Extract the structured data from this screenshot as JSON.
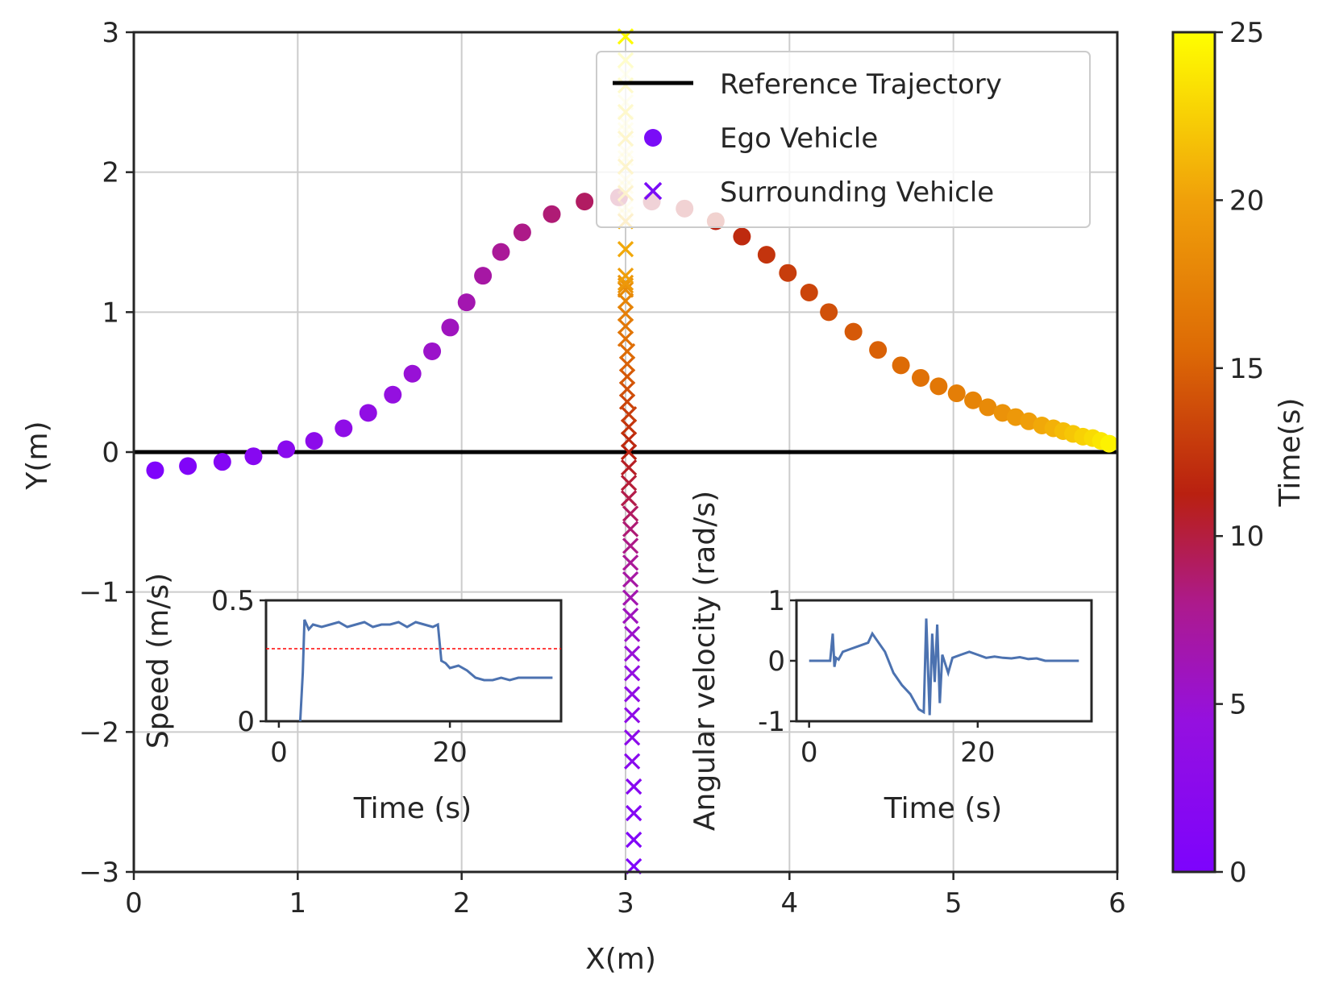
{
  "chart_data": [
    {
      "type": "scatter",
      "role": "main",
      "xlabel": "X(m)",
      "ylabel": "Y(m)",
      "xlim": [
        0,
        6
      ],
      "ylim": [
        -3,
        3
      ],
      "xticks": [
        0,
        1,
        2,
        3,
        4,
        5,
        6
      ],
      "xtick_labels": [
        "0",
        "1",
        "2",
        "3",
        "4",
        "5",
        "6"
      ],
      "yticks": [
        -3,
        -2,
        -1,
        0,
        1,
        2,
        3
      ],
      "ytick_labels": [
        "−3",
        "−2",
        "−1",
        "0",
        "1",
        "2",
        "3"
      ],
      "grid": true,
      "legend_position": "top-right",
      "legend": [
        {
          "name": "Reference Trajectory",
          "marker": "line",
          "color": "#000000"
        },
        {
          "name": "Ego Vehicle",
          "marker": "circle",
          "color": "#7a0cf7"
        },
        {
          "name": "Surrounding Vehicle",
          "marker": "x",
          "color": "#7a0cf7"
        }
      ],
      "reference_trajectory": {
        "x": [
          0,
          6
        ],
        "y": [
          0,
          0
        ],
        "color": "#000000"
      },
      "ego_vehicle": {
        "x": [
          0.13,
          0.33,
          0.54,
          0.73,
          0.93,
          1.1,
          1.28,
          1.43,
          1.58,
          1.7,
          1.82,
          1.93,
          2.03,
          2.13,
          2.24,
          2.37,
          2.55,
          2.75,
          2.96,
          3.16,
          3.36,
          3.55,
          3.71,
          3.86,
          3.99,
          4.12,
          4.24,
          4.39,
          4.54,
          4.68,
          4.8,
          4.91,
          5.02,
          5.12,
          5.21,
          5.3,
          5.38,
          5.46,
          5.54,
          5.61,
          5.67,
          5.73,
          5.79,
          5.85,
          5.9,
          5.95
        ],
        "y": [
          -0.13,
          -0.1,
          -0.07,
          -0.03,
          0.02,
          0.08,
          0.17,
          0.28,
          0.41,
          0.56,
          0.72,
          0.89,
          1.07,
          1.26,
          1.43,
          1.57,
          1.7,
          1.79,
          1.82,
          1.79,
          1.74,
          1.65,
          1.54,
          1.41,
          1.28,
          1.14,
          1.0,
          0.86,
          0.73,
          0.62,
          0.53,
          0.47,
          0.42,
          0.37,
          0.32,
          0.28,
          0.25,
          0.22,
          0.19,
          0.17,
          0.15,
          0.13,
          0.11,
          0.1,
          0.08,
          0.06
        ],
        "time": [
          0.3,
          0.8,
          1.3,
          1.8,
          2.3,
          2.8,
          3.3,
          3.8,
          4.4,
          4.9,
          5.4,
          5.9,
          6.5,
          7.0,
          7.5,
          8.1,
          8.6,
          9.1,
          9.7,
          10.2,
          10.7,
          11.3,
          11.8,
          12.4,
          12.9,
          13.4,
          14.0,
          14.5,
          15.0,
          15.6,
          16.1,
          16.6,
          17.2,
          17.7,
          18.2,
          18.8,
          19.3,
          19.8,
          20.4,
          20.9,
          21.5,
          22.0,
          22.6,
          23.1,
          23.7,
          24.3
        ]
      },
      "surrounding_vehicle": {
        "x": [
          3.05,
          3.05,
          3.05,
          3.05,
          3.04,
          3.04,
          3.04,
          3.04,
          3.04,
          3.04,
          3.04,
          3.03,
          3.03,
          3.03,
          3.03,
          3.03,
          3.03,
          3.03,
          3.02,
          3.02,
          3.02,
          3.02,
          3.02,
          3.02,
          3.02,
          3.01,
          3.01,
          3.01,
          3.01,
          3.01,
          3.0,
          3.0,
          3.0,
          3.0,
          3.0,
          3.0,
          3.0,
          3.0,
          3.0,
          3.0,
          3.0,
          3.0,
          3.0,
          3.0,
          3.0,
          3.0,
          3.0,
          3.0,
          3.0,
          3.0,
          3.0,
          3.0,
          3.0,
          3.0,
          3.0,
          3.0,
          3.0
        ],
        "y": [
          -2.96,
          -2.77,
          -2.58,
          -2.39,
          -2.21,
          -2.04,
          -1.88,
          -1.73,
          -1.58,
          -1.44,
          -1.3,
          -1.17,
          -1.04,
          -0.91,
          -0.79,
          -0.67,
          -0.55,
          -0.44,
          -0.33,
          -0.22,
          -0.11,
          0.0,
          0.09,
          0.18,
          0.27,
          0.36,
          0.45,
          0.54,
          0.63,
          0.72,
          0.81,
          0.9,
          0.99,
          1.08,
          1.16,
          1.19,
          1.21,
          1.26,
          1.45,
          1.65,
          1.85,
          2.04,
          2.24,
          2.43,
          2.62,
          2.8,
          2.97,
          1.7,
          1.9,
          2.1,
          2.3,
          2.5,
          2.7,
          1.75,
          1.95,
          2.15,
          2.35
        ],
        "time": [
          0.3,
          0.8,
          1.3,
          1.8,
          2.3,
          2.8,
          3.3,
          3.8,
          4.4,
          4.9,
          5.4,
          5.9,
          6.5,
          7.0,
          7.5,
          8.1,
          8.6,
          9.1,
          9.7,
          10.2,
          10.7,
          11.3,
          11.8,
          12.4,
          12.9,
          13.4,
          14.0,
          14.5,
          15.0,
          15.6,
          16.1,
          16.6,
          17.2,
          17.7,
          18.2,
          18.8,
          19.3,
          19.8,
          20.4,
          20.9,
          21.5,
          22.0,
          22.6,
          23.1,
          23.7,
          24.3,
          24.8,
          23.0,
          23.4,
          23.8,
          24.1,
          24.4,
          24.7,
          22.8,
          23.2,
          23.6,
          24.0
        ],
        "faded_indices_from": 47
      },
      "colorbar": {
        "label": "Time(s)",
        "range": [
          0,
          25
        ],
        "ticks": [
          0,
          5,
          10,
          15,
          20,
          25
        ],
        "tick_labels": [
          "0",
          "5",
          "10",
          "15",
          "20",
          "25"
        ],
        "colormap": [
          "#7d03fd",
          "#9510df",
          "#ad1a8c",
          "#b92010",
          "#dd6a05",
          "#f0a00a",
          "#ffff00"
        ]
      }
    },
    {
      "type": "line",
      "role": "inset-speed",
      "xlabel": "Time (s)",
      "ylabel": "Speed (m/s)",
      "xlim": [
        -1.5,
        33
      ],
      "ylim": [
        0,
        0.5
      ],
      "xticks": [
        0,
        20
      ],
      "xtick_labels": [
        "0",
        "20"
      ],
      "yticks": [
        0,
        0.5
      ],
      "ytick_labels": [
        "0",
        "0.5"
      ],
      "reference_line": {
        "y": 0.3,
        "color": "#ff0000",
        "style": "dashed"
      },
      "series": [
        {
          "name": "speed",
          "color": "#4c72b0",
          "x": [
            2.5,
            2.8,
            3.0,
            3.5,
            4,
            5,
            6,
            7,
            8,
            9,
            10,
            11,
            12,
            13,
            14,
            15,
            16,
            17,
            18,
            18.6,
            19,
            19.5,
            20,
            21,
            22,
            23,
            24,
            25,
            26,
            27,
            28,
            29,
            30,
            31,
            32
          ],
          "y": [
            0.0,
            0.2,
            0.42,
            0.38,
            0.4,
            0.39,
            0.4,
            0.41,
            0.39,
            0.4,
            0.41,
            0.39,
            0.4,
            0.4,
            0.41,
            0.39,
            0.41,
            0.4,
            0.39,
            0.4,
            0.25,
            0.24,
            0.22,
            0.23,
            0.21,
            0.18,
            0.17,
            0.17,
            0.18,
            0.17,
            0.18,
            0.18,
            0.18,
            0.18,
            0.18
          ]
        }
      ]
    },
    {
      "type": "line",
      "role": "inset-angular",
      "xlabel": "Time (s)",
      "ylabel": "Angular velocity (rad/s)",
      "xlim": [
        -1.5,
        33.5
      ],
      "ylim": [
        -1,
        1
      ],
      "xticks": [
        0,
        20
      ],
      "xtick_labels": [
        "0",
        "20"
      ],
      "yticks": [
        -1,
        0,
        1
      ],
      "ytick_labels": [
        "-1",
        "0",
        "1"
      ],
      "series": [
        {
          "name": "angular velocity",
          "color": "#4c72b0",
          "x": [
            0,
            2.5,
            2.8,
            3.0,
            3.2,
            3.5,
            4,
            5,
            6,
            7,
            7.5,
            8,
            9,
            10,
            11,
            12,
            13,
            13.6,
            13.9,
            14.3,
            14.6,
            14.9,
            15.2,
            15.5,
            15.8,
            16.5,
            17,
            18,
            19,
            20,
            21,
            22,
            23,
            24,
            25,
            26,
            27,
            28,
            30,
            32
          ],
          "y": [
            0.0,
            0.0,
            0.45,
            -0.1,
            0.05,
            0.02,
            0.15,
            0.2,
            0.25,
            0.3,
            0.45,
            0.35,
            0.15,
            -0.2,
            -0.4,
            -0.55,
            -0.8,
            -0.85,
            0.7,
            -0.9,
            0.45,
            -0.35,
            0.6,
            -0.7,
            0.1,
            -0.2,
            0.05,
            0.1,
            0.15,
            0.1,
            0.05,
            0.07,
            0.05,
            0.04,
            0.06,
            0.03,
            0.04,
            0.0,
            0.0,
            0.0
          ]
        }
      ]
    }
  ]
}
